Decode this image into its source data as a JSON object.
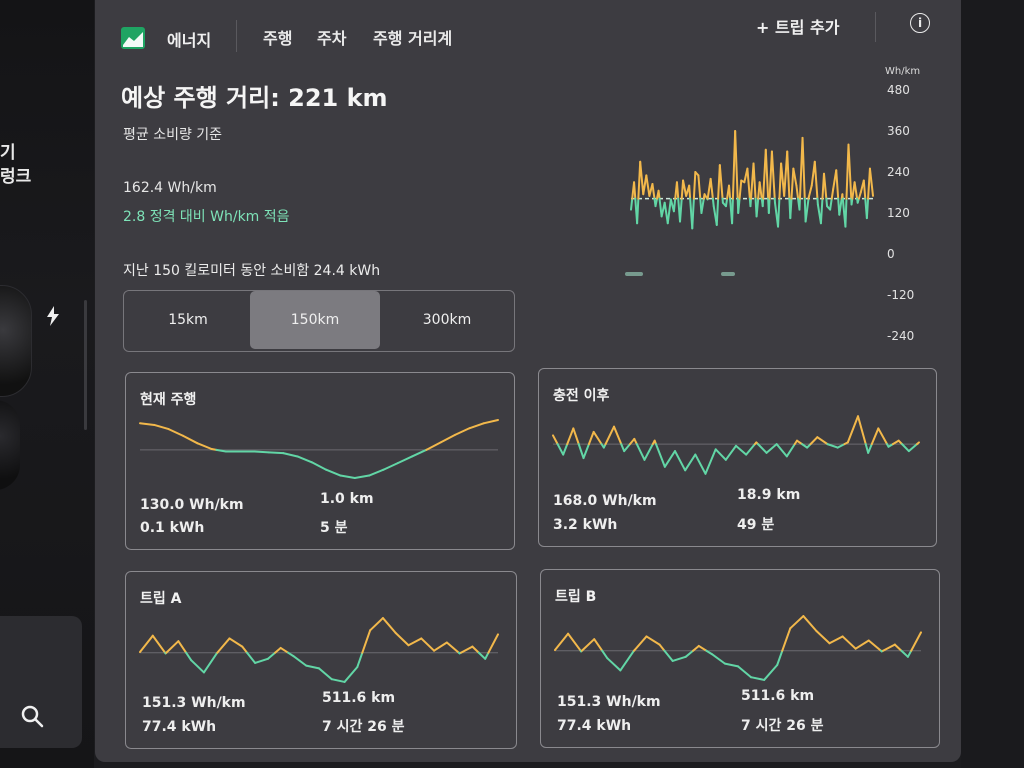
{
  "side": {
    "text_line1": "기",
    "text_line2": "렁크"
  },
  "nav": {
    "title": "에너지",
    "tabs": [
      "주행",
      "주차",
      "주행 거리계"
    ],
    "add_trip": "+ 트립 추가",
    "info_symbol": "i"
  },
  "summary": {
    "range_title": "예상 주행 거리: 221 km",
    "range_basis": "평균 소비량 기준",
    "avg_consumption": "162.4 Wh/km",
    "avg_compare": "2.8 정격 대비 Wh/km 적음",
    "last_distance": "지난 150 킬로미터 동안 소비함 24.4 kWh"
  },
  "segment": {
    "options": [
      "15km",
      "150km",
      "300km"
    ],
    "selected": "150km"
  },
  "chart_data": {
    "type": "line",
    "ylabel": "Wh/km",
    "y_ticks": [
      "480",
      "360",
      "240",
      "120",
      "0",
      "-120",
      "-240"
    ],
    "ylim": [
      -240,
      480
    ],
    "baseline": 162,
    "colors": {
      "above": "#f2b84b",
      "below": "#62d6a6",
      "baseline": "#cfe7dc"
    },
    "series": [
      {
        "values": [
          130,
          210,
          90,
          270,
          175,
          230,
          170,
          205,
          140,
          185,
          110,
          150,
          90,
          160,
          125,
          210,
          95,
          215,
          170,
          200,
          75,
          240,
          230,
          120,
          175,
          160,
          220,
          140,
          85,
          260,
          150,
          140,
          200,
          90,
          360,
          120,
          215,
          210,
          250,
          140,
          265,
          110,
          210,
          140,
          305,
          120,
          300,
          150,
          80,
          265,
          170,
          300,
          105,
          250,
          200,
          130,
          340,
          95,
          165,
          200,
          270,
          145,
          90,
          235,
          140,
          130,
          190,
          245,
          115,
          175,
          80,
          320,
          145,
          210,
          150,
          180,
          215,
          105,
          250,
          170
        ]
      }
    ]
  },
  "cards": [
    {
      "title": "현재 주행",
      "consumption": "130.0 Wh/km",
      "energy": "0.1 kWh",
      "distance": "1.0 km",
      "time": "5 분",
      "chart_data": {
        "type": "line",
        "baseline": 130,
        "values": [
          162,
          160,
          155,
          147,
          138,
          131,
          128,
          128,
          128,
          127,
          126,
          122,
          115,
          106,
          99,
          96,
          99,
          106,
          114,
          122,
          130,
          139,
          148,
          156,
          162,
          166
        ]
      }
    },
    {
      "title": "충전 이후",
      "consumption": "168.0 Wh/km",
      "energy": "3.2 kWh",
      "distance": "18.9 km",
      "time": "49 분",
      "chart_data": {
        "type": "line",
        "baseline": 168,
        "values": [
          178,
          156,
          186,
          152,
          182,
          164,
          188,
          160,
          174,
          150,
          172,
          142,
          160,
          138,
          156,
          134,
          162,
          150,
          166,
          156,
          170,
          158,
          168,
          154,
          172,
          164,
          176,
          168,
          164,
          170,
          200,
          158,
          186,
          165,
          172,
          160,
          170
        ]
      }
    },
    {
      "title": "트립 A",
      "consumption": "151.3 Wh/km",
      "energy": "77.4 kWh",
      "distance": "511.6 km",
      "time": "7 시간 26 분",
      "chart_data": {
        "type": "line",
        "baseline": 151,
        "values": [
          152,
          176,
          150,
          168,
          140,
          122,
          150,
          172,
          160,
          136,
          142,
          158,
          146,
          132,
          128,
          112,
          108,
          130,
          184,
          202,
          180,
          162,
          172,
          154,
          166,
          150,
          160,
          142,
          178
        ]
      }
    },
    {
      "title": "트립 B",
      "consumption": "151.3 Wh/km",
      "energy": "77.4 kWh",
      "distance": "511.6 km",
      "time": "7 시간 26 분",
      "chart_data": {
        "type": "line",
        "baseline": 151,
        "values": [
          152,
          176,
          150,
          168,
          140,
          122,
          150,
          172,
          160,
          136,
          142,
          158,
          146,
          132,
          128,
          112,
          108,
          130,
          184,
          202,
          180,
          162,
          172,
          154,
          166,
          150,
          160,
          142,
          178
        ]
      }
    }
  ]
}
